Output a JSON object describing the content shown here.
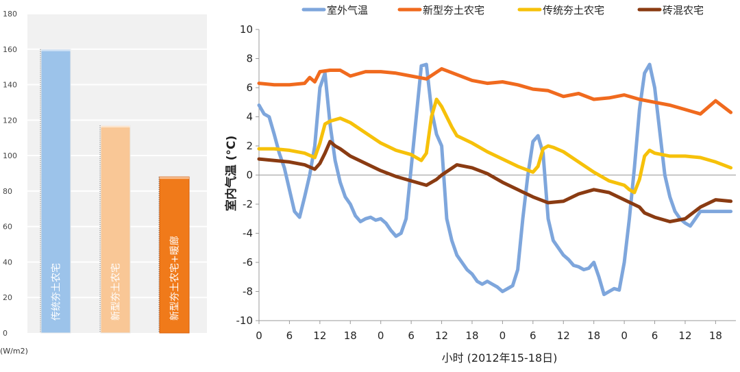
{
  "chart_data": [
    {
      "type": "bar",
      "categories": [
        "传统夯土农宅",
        "新型夯土农宅",
        "新型夯土农宅+暖廊"
      ],
      "values": [
        160,
        117,
        88
      ],
      "ylim": [
        0,
        180
      ],
      "yticks": [
        "0",
        "20",
        "40",
        "60",
        "80",
        "100",
        "120",
        "140",
        "160",
        "180"
      ],
      "unit_label": "(W/m2)",
      "grid": true,
      "colors": [
        "#9cc3ea",
        "#f9c796",
        "#f07a1a"
      ]
    },
    {
      "type": "line",
      "xlabel": "小时 (2012年15-18日)",
      "ylabel": "室内气温 (°C)",
      "ylim": [
        -10,
        10
      ],
      "yticks": [
        "-10",
        "-8",
        "-6",
        "-4",
        "-2",
        "0",
        "2",
        "4",
        "6",
        "8",
        "10"
      ],
      "xlim": [
        0,
        94
      ],
      "xticks": [
        "0",
        "6",
        "12",
        "18",
        "0",
        "6",
        "12",
        "18",
        "0",
        "6",
        "12",
        "18",
        "0",
        "6",
        "12",
        "18"
      ],
      "legend_position": "top",
      "grid": false,
      "series": [
        {
          "name": "室外气温",
          "color": "#7ea6dc",
          "x": [
            0,
            1,
            2,
            3,
            4,
            5,
            6,
            7,
            8,
            9,
            10,
            11,
            12,
            13,
            14,
            15,
            16,
            17,
            18,
            19,
            20,
            21,
            22,
            23,
            24,
            25,
            26,
            27,
            28,
            29,
            30,
            31,
            32,
            33,
            34,
            35,
            36,
            37,
            38,
            39,
            40,
            41,
            42,
            43,
            44,
            45,
            46,
            47,
            48,
            49,
            50,
            51,
            52,
            53,
            54,
            55,
            56,
            57,
            58,
            59,
            60,
            61,
            62,
            63,
            64,
            65,
            66,
            67,
            68,
            69,
            70,
            71,
            72,
            73,
            74,
            75,
            76,
            77,
            78,
            79,
            80,
            81,
            82,
            83,
            84,
            85,
            86,
            87,
            88,
            89,
            90,
            91,
            92,
            93
          ],
          "values": [
            4.8,
            4.2,
            4.0,
            2.8,
            1.5,
            0.5,
            -1.0,
            -2.5,
            -2.9,
            -1.5,
            0.0,
            2.0,
            6.0,
            7.0,
            3.5,
            1.0,
            -0.5,
            -1.5,
            -2.0,
            -2.8,
            -3.2,
            -3.0,
            -2.9,
            -3.1,
            -3.0,
            -3.3,
            -3.8,
            -4.2,
            -4.0,
            -3.0,
            0.5,
            4.0,
            7.5,
            7.6,
            4.5,
            2.8,
            2.0,
            -3.0,
            -4.5,
            -5.5,
            -6.0,
            -6.5,
            -6.8,
            -7.3,
            -7.5,
            -7.3,
            -7.5,
            -7.7,
            -8.0,
            -7.8,
            -7.6,
            -6.5,
            -3.0,
            0.0,
            2.3,
            2.7,
            1.5,
            -3.0,
            -4.5,
            -5.0,
            -5.5,
            -5.8,
            -6.2,
            -6.3,
            -6.5,
            -6.4,
            -6.0,
            -7.0,
            -8.2,
            -8.0,
            -7.8,
            -7.9,
            -6.0,
            -3.0,
            0.5,
            4.5,
            7.0,
            7.6,
            6.0,
            3.0,
            0.0,
            -1.5,
            -2.5,
            -3.0,
            -3.3,
            -3.5,
            -3.0,
            -2.5,
            -2.5,
            -2.5,
            -2.5,
            -2.5,
            -2.5,
            -2.5
          ]
        },
        {
          "name": "新型夯土农宅",
          "color": "#f06a1e",
          "x": [
            0,
            3,
            6,
            9,
            10,
            11,
            12,
            14,
            16,
            18,
            21,
            24,
            27,
            30,
            33,
            36,
            39,
            42,
            45,
            48,
            51,
            54,
            57,
            60,
            63,
            66,
            69,
            72,
            75,
            78,
            81,
            84,
            87,
            90,
            93
          ],
          "values": [
            6.3,
            6.2,
            6.2,
            6.3,
            6.7,
            6.4,
            7.1,
            7.2,
            7.2,
            6.8,
            7.1,
            7.1,
            7.0,
            6.8,
            6.6,
            7.3,
            6.9,
            6.5,
            6.3,
            6.4,
            6.2,
            5.9,
            5.8,
            5.4,
            5.6,
            5.2,
            5.3,
            5.5,
            5.2,
            5.0,
            4.8,
            4.5,
            4.2,
            5.1,
            4.3
          ]
        },
        {
          "name": "传统夯土农宅",
          "color": "#f6c10a",
          "x": [
            0,
            3,
            6,
            9,
            11,
            12,
            13,
            14,
            16,
            18,
            21,
            24,
            27,
            30,
            31,
            32,
            33,
            34,
            35,
            36,
            38,
            39,
            42,
            45,
            48,
            51,
            54,
            55,
            56,
            57,
            58,
            60,
            63,
            66,
            69,
            72,
            73,
            74,
            75,
            76,
            77,
            78,
            81,
            84,
            87,
            90,
            93
          ],
          "values": [
            1.8,
            1.8,
            1.7,
            1.5,
            1.2,
            2.2,
            3.5,
            3.7,
            3.9,
            3.6,
            2.9,
            2.2,
            1.7,
            1.4,
            1.2,
            1.0,
            1.5,
            4.0,
            5.2,
            4.7,
            3.3,
            2.7,
            2.2,
            1.6,
            1.1,
            0.6,
            0.2,
            0.6,
            1.8,
            2.0,
            1.9,
            1.6,
            0.9,
            0.2,
            -0.4,
            -0.7,
            -1.0,
            -1.2,
            -0.3,
            1.3,
            1.7,
            1.5,
            1.3,
            1.3,
            1.2,
            0.9,
            0.5
          ]
        },
        {
          "name": "砖混农宅",
          "color": "#8a3b12",
          "x": [
            0,
            3,
            6,
            9,
            11,
            12,
            13,
            14,
            15,
            16,
            18,
            21,
            24,
            27,
            30,
            33,
            35,
            36,
            39,
            42,
            45,
            48,
            51,
            54,
            57,
            60,
            63,
            66,
            69,
            72,
            75,
            76,
            78,
            81,
            84,
            87,
            90,
            93
          ],
          "values": [
            1.1,
            1.0,
            0.9,
            0.7,
            0.4,
            0.8,
            1.5,
            2.3,
            2.0,
            1.8,
            1.3,
            0.8,
            0.3,
            -0.1,
            -0.4,
            -0.7,
            -0.3,
            0.0,
            0.7,
            0.5,
            0.1,
            -0.5,
            -1.0,
            -1.5,
            -1.9,
            -1.8,
            -1.3,
            -1.0,
            -1.2,
            -1.7,
            -2.2,
            -2.6,
            -2.9,
            -3.2,
            -3.0,
            -2.2,
            -1.7,
            -1.8
          ]
        }
      ]
    }
  ]
}
